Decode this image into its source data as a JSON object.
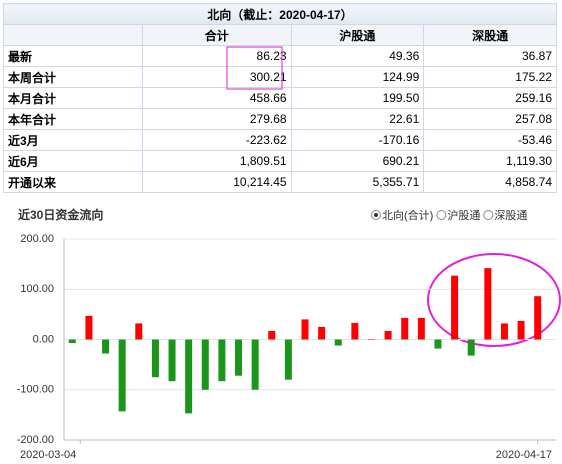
{
  "table": {
    "title": "北向（截止：2020-04-17）",
    "columns": [
      "合计",
      "沪股通",
      "深股通"
    ],
    "rows": [
      [
        "最新",
        "86.23",
        "49.36",
        "36.87"
      ],
      [
        "本周合计",
        "300.21",
        "124.99",
        "175.22"
      ],
      [
        "本月合计",
        "458.66",
        "199.50",
        "259.16"
      ],
      [
        "本年合计",
        "279.68",
        "22.61",
        "257.08"
      ],
      [
        "近3月",
        "-223.62",
        "-170.16",
        "-53.46"
      ],
      [
        "近6月",
        "1,809.51",
        "690.21",
        "1,119.30"
      ],
      [
        "开通以来",
        "10,214.45",
        "5,355.71",
        "4,858.74"
      ]
    ]
  },
  "chart_data": {
    "type": "bar",
    "title": "近30日资金流向",
    "options": [
      "北向(合计)",
      "沪股通",
      "深股通"
    ],
    "selected": 0,
    "categories": [
      "2020-03-04",
      null,
      null,
      null,
      null,
      null,
      null,
      null,
      null,
      null,
      null,
      null,
      null,
      null,
      null,
      null,
      null,
      null,
      null,
      null,
      null,
      null,
      null,
      null,
      null,
      null,
      null,
      null,
      "2020-04-17"
    ],
    "values": [
      -7,
      47,
      -28,
      -143,
      32,
      -75,
      -83,
      -147,
      -100,
      -83,
      -72,
      -100,
      17,
      -80,
      40,
      25,
      -12,
      33,
      1,
      17,
      43,
      43,
      -18,
      127,
      -32,
      142,
      32,
      37,
      86.23
    ],
    "positive_color": "#ff0000",
    "negative_color": "#1a961a",
    "ylim": [
      -200,
      200
    ],
    "yticks": [
      {
        "value": -200,
        "label": "-200.00"
      },
      {
        "value": -100,
        "label": "-100.00"
      },
      {
        "value": 0,
        "label": "0.00"
      },
      {
        "value": 100,
        "label": "100.00"
      },
      {
        "value": 200,
        "label": "200.00"
      }
    ],
    "grid": true
  }
}
